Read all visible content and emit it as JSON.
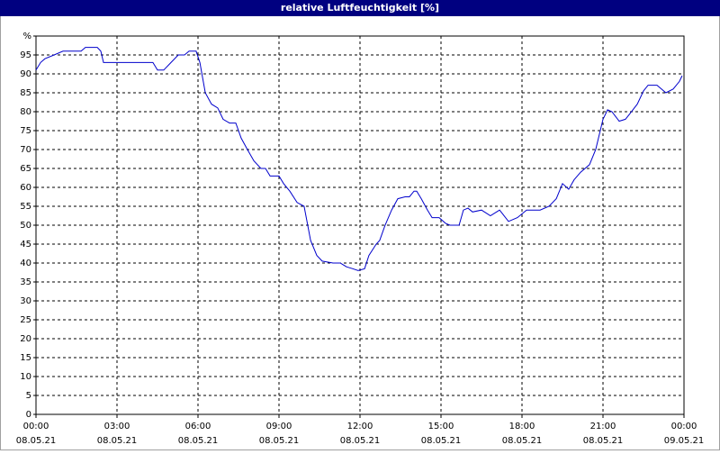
{
  "chart_data": {
    "type": "line",
    "title": "relative Luftfeuchtigkeit [%]",
    "color": "#0000cc",
    "grid": true,
    "xlim": [
      0,
      24
    ],
    "ylim": [
      0,
      100
    ],
    "xticks": [
      {
        "value": 0,
        "label": "00:00"
      },
      {
        "value": 3,
        "label": "03:00"
      },
      {
        "value": 6,
        "label": "06:00"
      },
      {
        "value": 9,
        "label": "09:00"
      },
      {
        "value": 12,
        "label": "12:00"
      },
      {
        "value": 15,
        "label": "15:00"
      },
      {
        "value": 18,
        "label": "18:00"
      },
      {
        "value": 21,
        "label": "21:00"
      },
      {
        "value": 24,
        "label": "00:00"
      }
    ],
    "xtick_dates": [
      "08.05.21",
      "08.05.21",
      "08.05.21",
      "08.05.21",
      "08.05.21",
      "08.05.21",
      "08.05.21",
      "08.05.21",
      "09.05.21"
    ],
    "yticks": [
      0,
      5,
      10,
      15,
      20,
      25,
      30,
      35,
      40,
      45,
      50,
      55,
      60,
      65,
      70,
      75,
      80,
      85,
      90,
      95,
      {
        "value": 100,
        "label": "%"
      }
    ],
    "x": [
      0,
      0.17,
      0.33,
      0.67,
      1,
      1.67,
      1.83,
      2.27,
      2.4,
      2.5,
      3,
      4.33,
      4.5,
      4.73,
      5,
      5.27,
      5.5,
      5.67,
      5.93,
      6.07,
      6.27,
      6.5,
      6.73,
      6.93,
      7.17,
      7.4,
      7.6,
      7.83,
      8.07,
      8.33,
      8.5,
      8.67,
      9,
      9.17,
      9.4,
      9.67,
      9.93,
      10.17,
      10.4,
      10.6,
      11,
      11.27,
      11.5,
      11.73,
      11.93,
      12.17,
      12.33,
      12.6,
      12.73,
      12.93,
      13.17,
      13.4,
      13.67,
      13.83,
      14,
      14.1,
      14.27,
      14.5,
      14.67,
      14.93,
      15.17,
      15.33,
      15.67,
      15.83,
      16,
      16.17,
      16.5,
      16.83,
      17.17,
      17.5,
      17.83,
      18.17,
      18.67,
      19,
      19.27,
      19.5,
      19.73,
      19.93,
      20.17,
      20.5,
      20.73,
      21,
      21.17,
      21.33,
      21.6,
      21.83,
      22,
      22.27,
      22.5,
      22.67,
      23,
      23.33,
      23.6,
      23.83,
      23.93
    ],
    "values": [
      91,
      93,
      94,
      95,
      96,
      96,
      97,
      97,
      96,
      93,
      93,
      93,
      91,
      91,
      93,
      95,
      95,
      96,
      96,
      93,
      85,
      82,
      81,
      78,
      77,
      77,
      73,
      70,
      67,
      65,
      65,
      63,
      63,
      61,
      59,
      56,
      55,
      46,
      42,
      40.5,
      40,
      40,
      39,
      38.5,
      38,
      38.5,
      42,
      45,
      46,
      50,
      54,
      57,
      57.5,
      57.5,
      59,
      59,
      57,
      54,
      52,
      52,
      50.5,
      50,
      50,
      54,
      54.5,
      53.5,
      54,
      52.5,
      54,
      51,
      52,
      54,
      54,
      55,
      57,
      61,
      59.5,
      62,
      64,
      66,
      70,
      78,
      80.5,
      80,
      77.5,
      78,
      79.5,
      82,
      85.5,
      87,
      87,
      85,
      86,
      88,
      89.5
    ]
  }
}
